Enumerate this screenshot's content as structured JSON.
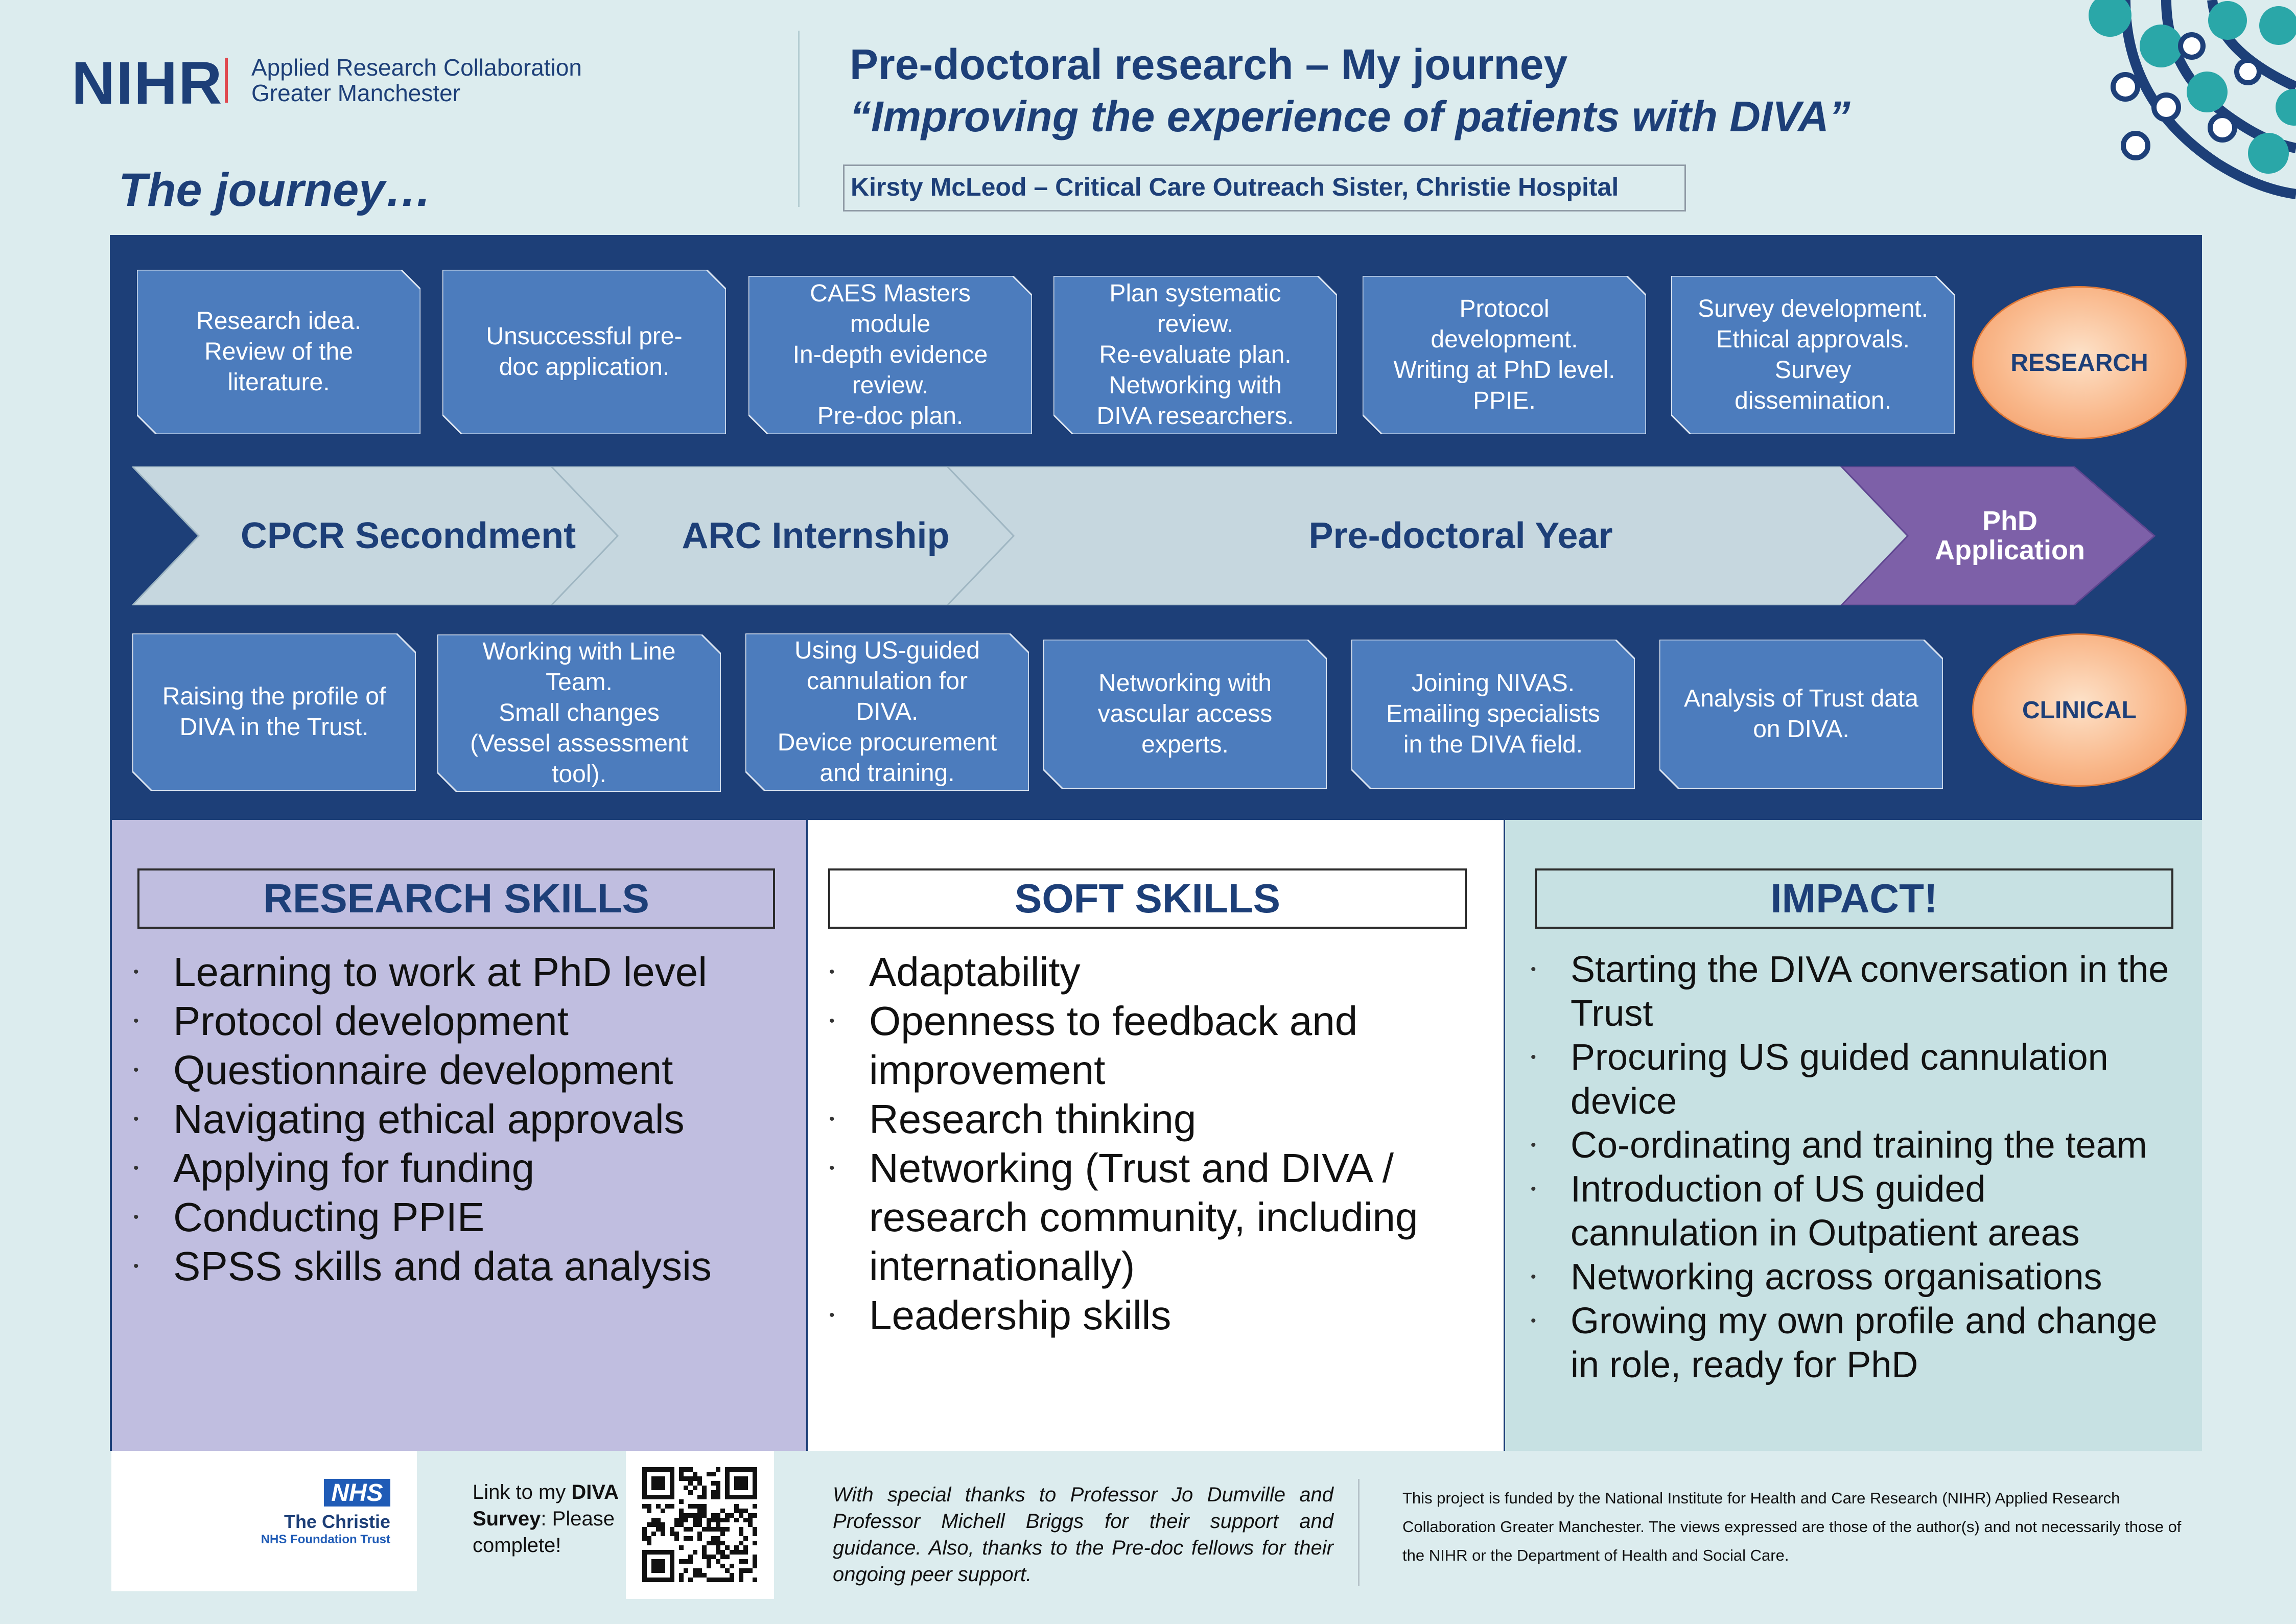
{
  "header": {
    "logo_nihr": "NIHR",
    "logo_line1": "Applied Research Collaboration",
    "logo_line2": "Greater Manchester",
    "title_line1": "Pre-doctoral research – My journey",
    "title_line2": "“Improving the experience of patients with DIVA”",
    "author": "Kirsty McLeod – Critical Care Outreach Sister, Christie Hospital",
    "journey_heading": "The journey…"
  },
  "timeline": {
    "research_boxes": [
      "Research idea.\nReview of the\nliterature.",
      "Unsuccessful pre-\ndoc application.",
      "CAES Masters\nmodule\nIn-depth evidence\nreview.\nPre-doc plan.",
      "Plan systematic\nreview.\nRe-evaluate plan.\nNetworking with\nDIVA researchers.",
      "Protocol\ndevelopment.\nWriting at PhD level.\nPPIE.",
      "Survey development.\nEthical approvals.\nSurvey\ndissemination."
    ],
    "research_oval": "RESEARCH",
    "stages": [
      "CPCR Secondment",
      "ARC Internship",
      "Pre-doctoral Year"
    ],
    "phd_stage": "PhD\nApplication",
    "clinical_boxes": [
      "Raising the profile of\nDIVA in the Trust.",
      "Working with Line\nTeam.\nSmall changes\n(Vessel assessment\ntool).",
      "Using US-guided\ncannulation for\nDIVA.\nDevice procurement\nand training.",
      "Networking with\nvascular access\nexperts.",
      "Joining NIVAS.\nEmailing specialists\nin the DIVA field.",
      "Analysis of Trust data\non DIVA."
    ],
    "clinical_oval": "CLINICAL",
    "colors": {
      "panel": "#1d3f78",
      "box": "#4c7cbd",
      "chevron": "#c6d7df",
      "phd": "#7d60a8",
      "oval": "#f7a877"
    }
  },
  "skills": {
    "research": {
      "heading": "RESEARCH SKILLS",
      "items": [
        "Learning to work at PhD level",
        "Protocol development",
        "Questionnaire development",
        "Navigating ethical approvals",
        "Applying for funding",
        "Conducting PPIE",
        "SPSS skills and data analysis"
      ]
    },
    "soft": {
      "heading": "SOFT SKILLS",
      "items": [
        "Adaptability",
        "Openness to feedback and improvement",
        "Research thinking",
        "Networking (Trust and DIVA / research community, including internationally)",
        "Leadership skills"
      ]
    },
    "impact": {
      "heading": "IMPACT!",
      "items": [
        "Starting the DIVA conversation in the Trust",
        "Procuring US guided cannulation device",
        "Co-ordinating and training the team",
        "Introduction of US guided cannulation in Outpatient areas",
        "Networking across organisations",
        "Growing my own profile and change in role, ready for PhD"
      ]
    }
  },
  "footer": {
    "nhs": "NHS",
    "christie_name": "The Christie",
    "christie_trust": "NHS Foundation Trust",
    "survey_prefix": "Link to my ",
    "survey_bold": "DIVA Survey",
    "survey_suffix": ": Please complete!",
    "thanks": "With special thanks to Professor Jo Dumville and Professor Michell Briggs for their support and guidance. Also, thanks to the Pre-doc fellows for their ongoing peer support.",
    "funding": "This project is funded by the National Institute for Health and Care Research (NIHR) Applied Research Collaboration Greater Manchester. The views expressed are those of the author(s) and not necessarily those of the NIHR or the Department of Health and Social Care."
  }
}
